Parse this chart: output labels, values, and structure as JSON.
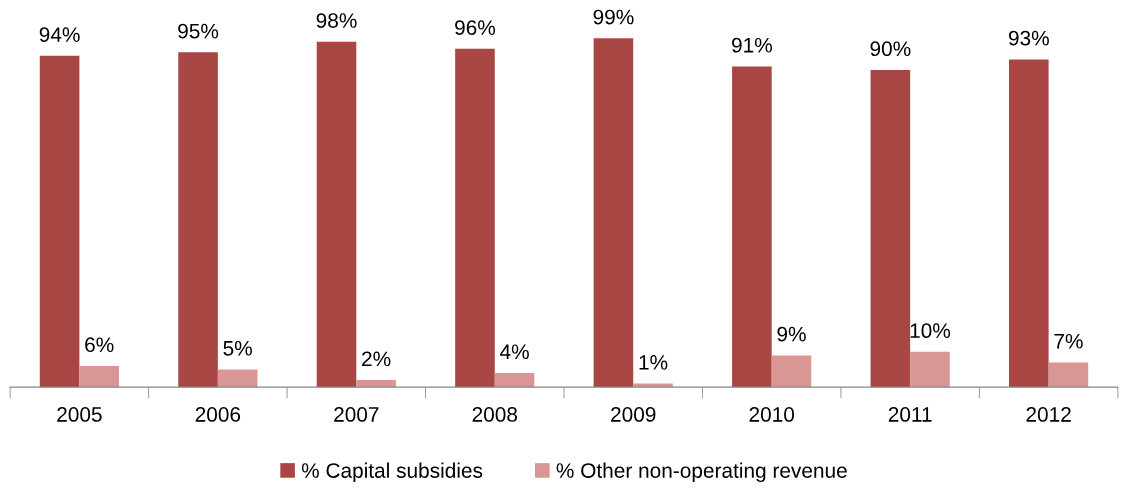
{
  "chart_data": {
    "type": "bar",
    "categories": [
      "2005",
      "2006",
      "2007",
      "2008",
      "2009",
      "2010",
      "2011",
      "2012"
    ],
    "series": [
      {
        "name": "% Capital subsidies",
        "color": "#a84644",
        "values": [
          94,
          95,
          98,
          96,
          99,
          91,
          90,
          93
        ],
        "value_labels": [
          "94%",
          "95%",
          "98%",
          "96%",
          "99%",
          "91%",
          "90%",
          "93%"
        ]
      },
      {
        "name": "% Other non-operating revenue",
        "color": "#d99694",
        "values": [
          6,
          5,
          2,
          4,
          1,
          9,
          10,
          7
        ],
        "value_labels": [
          "6%",
          "5%",
          "2%",
          "4%",
          "1%",
          "9%",
          "10%",
          "7%"
        ]
      }
    ],
    "legend": "bottom",
    "grid": false
  }
}
